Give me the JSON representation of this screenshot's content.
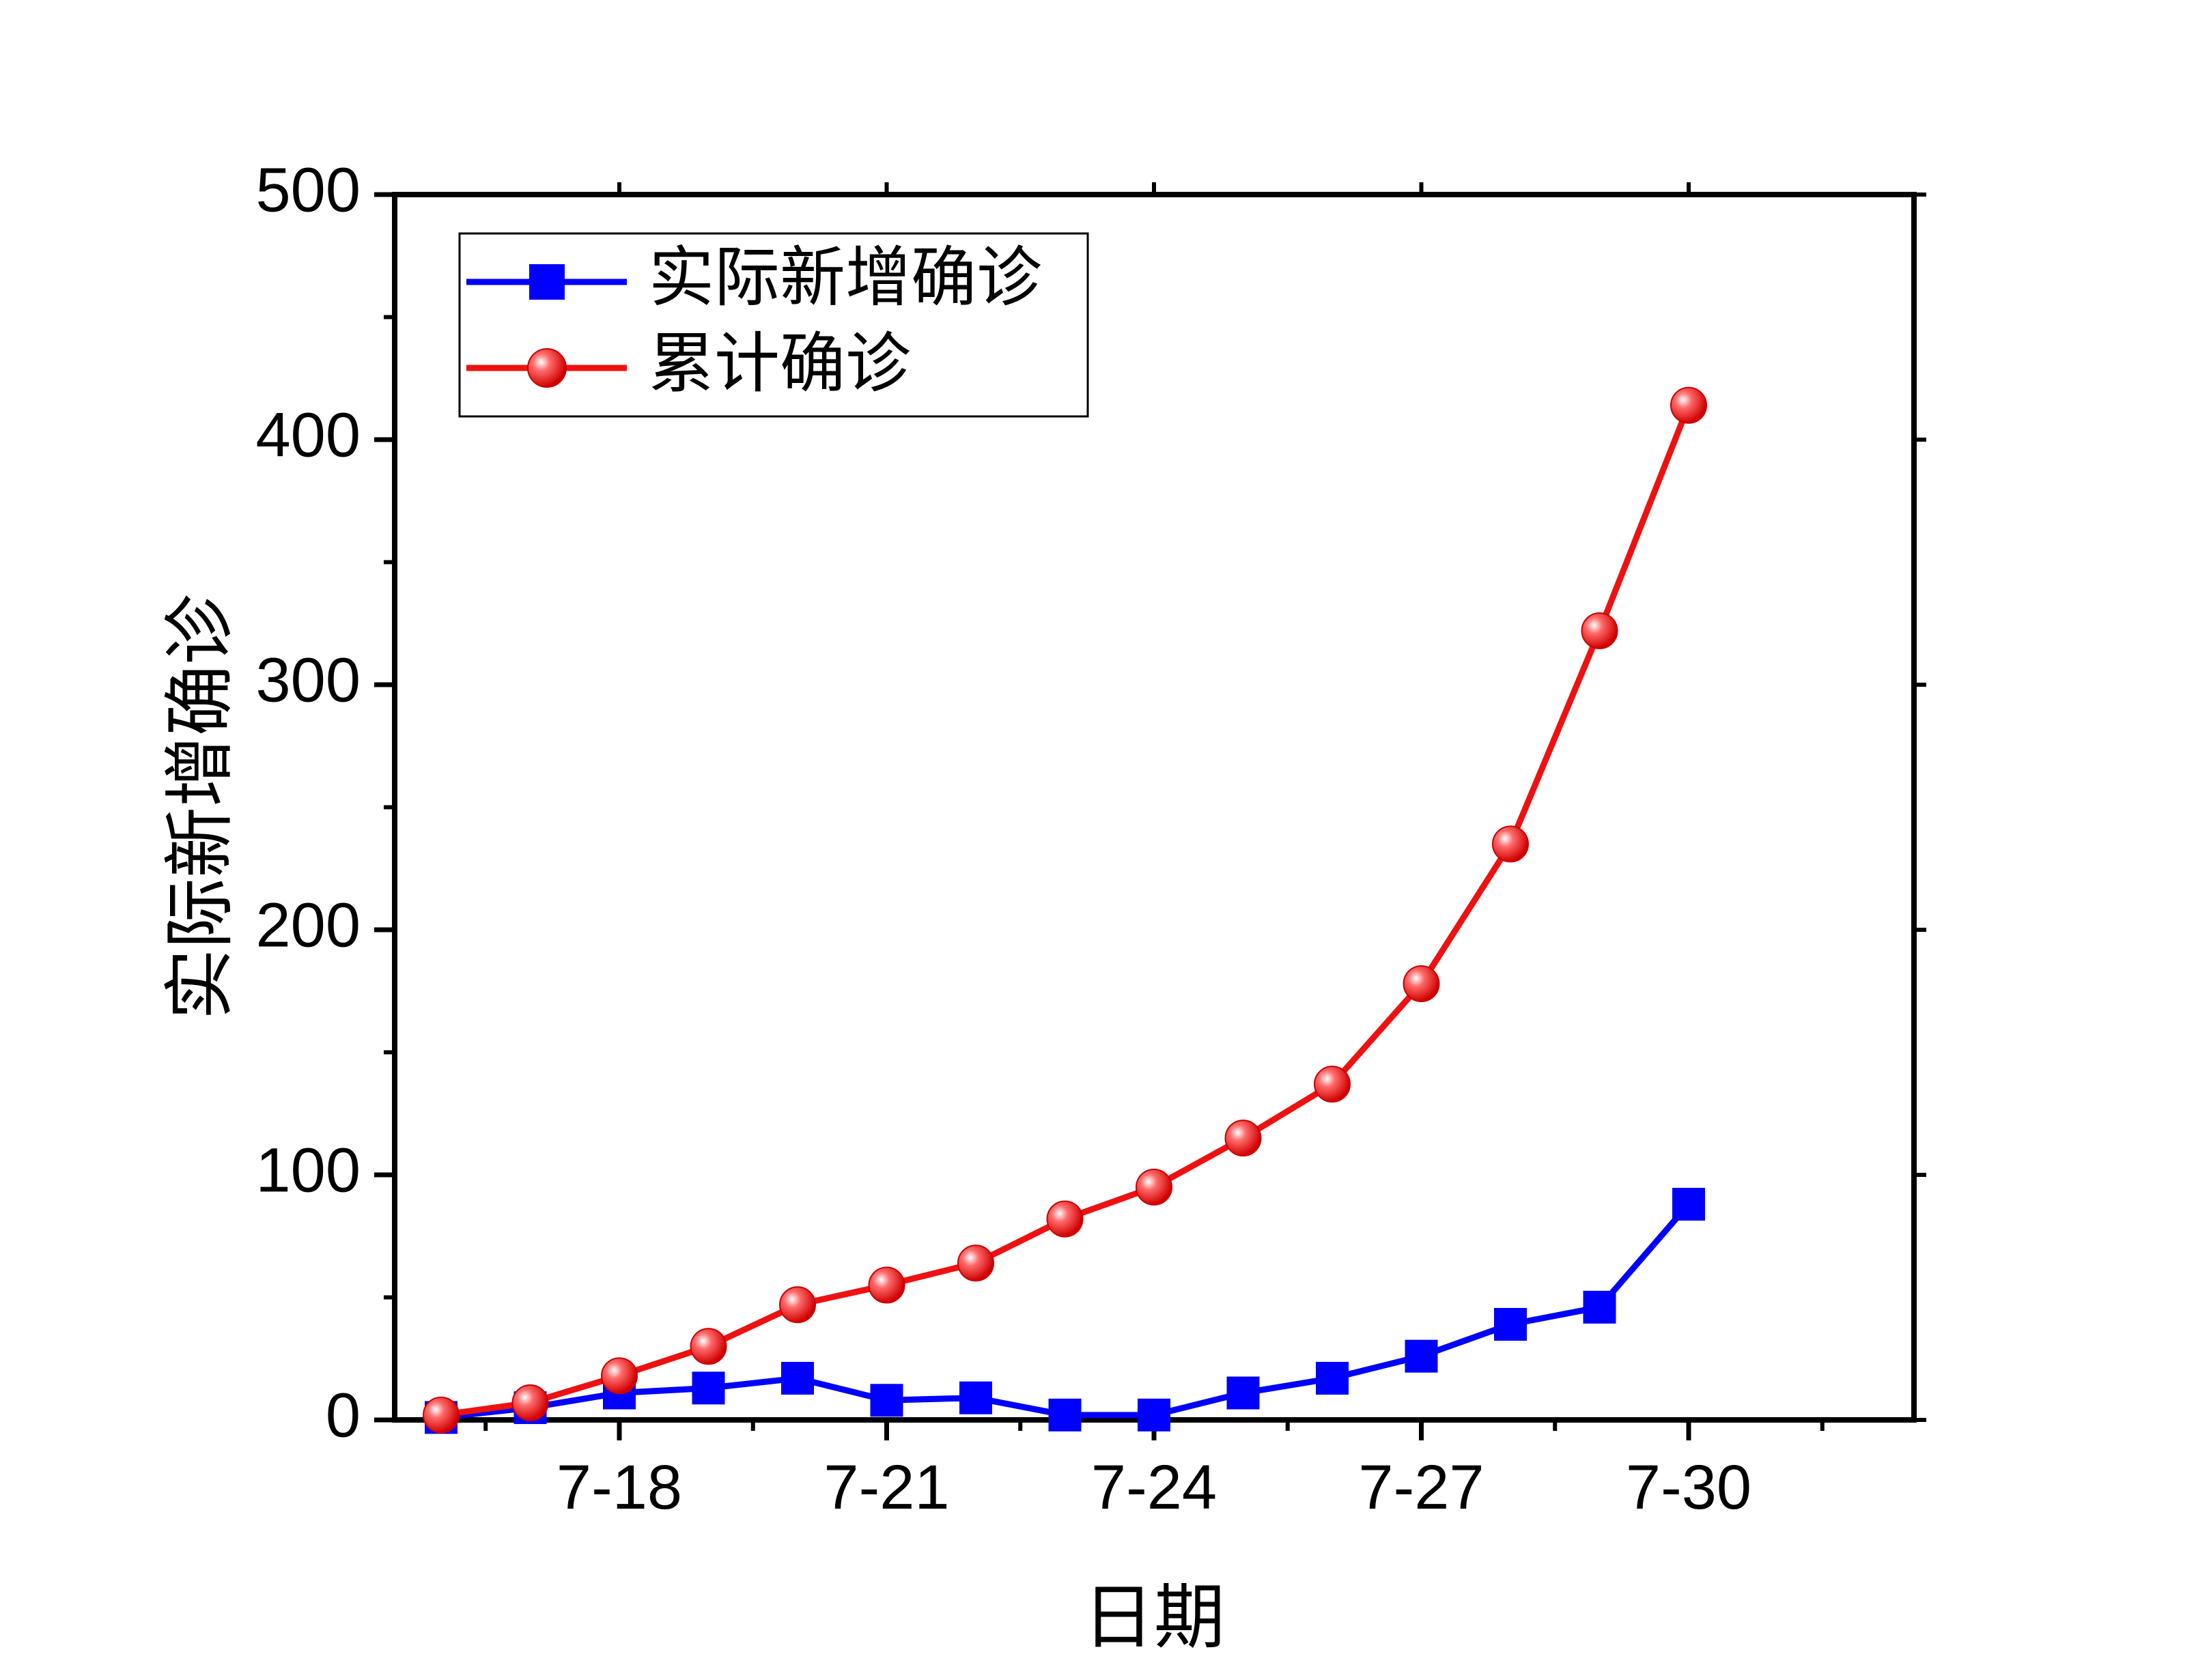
{
  "chart_data": {
    "type": "line",
    "title": "",
    "xlabel": "日期",
    "ylabel": "实际新增确诊",
    "categories": [
      "7-16",
      "7-17",
      "7-18",
      "7-19",
      "7-20",
      "7-21",
      "7-22",
      "7-23",
      "7-24",
      "7-25",
      "7-26",
      "7-27",
      "7-28",
      "7-29",
      "7-30"
    ],
    "x_tick_labels": [
      "7-18",
      "7-21",
      "7-24",
      "7-27",
      "7-30"
    ],
    "ylim": [
      0,
      500
    ],
    "y_ticks": [
      0,
      100,
      200,
      300,
      400,
      500
    ],
    "grid": false,
    "legend_position": "top-left",
    "series": [
      {
        "name": "实际新增确诊",
        "color": "#0000ff",
        "marker": "square",
        "values": [
          1,
          5,
          11,
          13,
          17,
          8,
          9,
          2,
          2,
          11,
          17,
          26,
          39,
          46,
          88
        ]
      },
      {
        "name": "累计确诊",
        "color": "#ee1111",
        "marker": "circle",
        "values": [
          2,
          7,
          18,
          30,
          47,
          55,
          64,
          82,
          95,
          115,
          137,
          178,
          235,
          322,
          414
        ]
      }
    ]
  }
}
